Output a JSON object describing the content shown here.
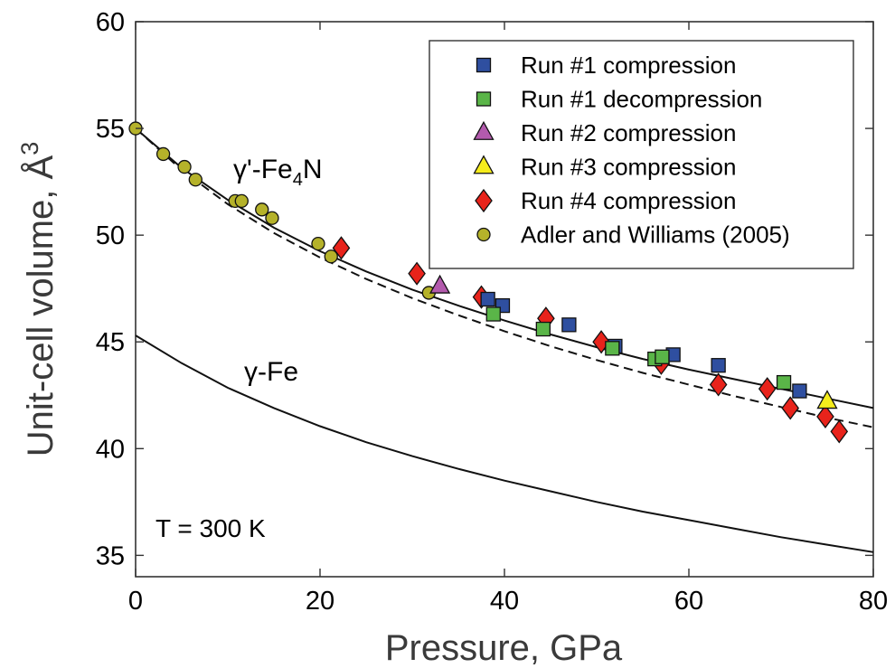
{
  "chart_data": {
    "type": "scatter",
    "xlabel": "Pressure, GPa",
    "ylabel": "Unit-cell volume, Å",
    "ylabel_superscript": "3",
    "xlim": [
      0,
      80
    ],
    "ylim": [
      34,
      60
    ],
    "xticks": [
      0,
      20,
      40,
      60,
      80
    ],
    "yticks": [
      35,
      40,
      45,
      50,
      55,
      60
    ],
    "grid": false,
    "legend_position": "top-right",
    "annotations": {
      "fe4n_label": {
        "text": "γ'-Fe",
        "sub": "4",
        "suffix": "N"
      },
      "fe_label": {
        "text": "γ-Fe"
      },
      "temperature": {
        "text": "T = 300 K"
      }
    },
    "series": [
      {
        "name": "Run #1 compression",
        "marker": "square",
        "color": "#2f4fa0",
        "points": [
          [
            38.2,
            47.0
          ],
          [
            39.8,
            46.7
          ],
          [
            47.0,
            45.8
          ],
          [
            52.0,
            44.8
          ],
          [
            58.3,
            44.4
          ],
          [
            63.2,
            43.9
          ],
          [
            72.0,
            42.7
          ]
        ]
      },
      {
        "name": "Run #1 decompression",
        "marker": "square",
        "color": "#5ab548",
        "points": [
          [
            38.8,
            46.3
          ],
          [
            44.2,
            45.6
          ],
          [
            51.7,
            44.7
          ],
          [
            56.3,
            44.2
          ],
          [
            57.1,
            44.3
          ],
          [
            70.3,
            43.1
          ]
        ]
      },
      {
        "name": "Run #2 compression",
        "marker": "triangle",
        "color": "#b35aad",
        "points": [
          [
            33.0,
            47.6
          ]
        ]
      },
      {
        "name": "Run #3 compression",
        "marker": "triangle",
        "color": "#f5ec1c",
        "points": [
          [
            75.0,
            42.2
          ]
        ]
      },
      {
        "name": "Run #4 compression",
        "marker": "diamond",
        "color": "#e8231b",
        "points": [
          [
            22.3,
            49.4
          ],
          [
            30.5,
            48.2
          ],
          [
            37.5,
            47.1
          ],
          [
            44.5,
            46.1
          ],
          [
            50.5,
            45.0
          ],
          [
            57.0,
            44.0
          ],
          [
            63.2,
            43.0
          ],
          [
            68.5,
            42.8
          ],
          [
            71.0,
            41.9
          ],
          [
            74.8,
            41.5
          ],
          [
            76.3,
            40.8
          ]
        ]
      },
      {
        "name": "Adler and Williams (2005)",
        "marker": "circle",
        "color": "#b5b22a",
        "points": [
          [
            0,
            55.0
          ],
          [
            3.0,
            53.8
          ],
          [
            5.3,
            53.2
          ],
          [
            6.5,
            52.6
          ],
          [
            10.8,
            51.6
          ],
          [
            11.5,
            51.6
          ],
          [
            13.7,
            51.2
          ],
          [
            14.8,
            50.8
          ],
          [
            19.8,
            49.6
          ],
          [
            21.2,
            49.0
          ],
          [
            31.8,
            47.3
          ]
        ]
      }
    ],
    "curves": [
      {
        "id": "fe4n-fit-solid",
        "style": "solid",
        "points": [
          [
            0,
            55.0
          ],
          [
            5,
            53.15
          ],
          [
            10,
            51.65
          ],
          [
            15,
            50.35
          ],
          [
            20,
            49.25
          ],
          [
            25,
            48.3
          ],
          [
            30,
            47.45
          ],
          [
            35,
            46.7
          ],
          [
            40,
            46.0
          ],
          [
            45,
            45.35
          ],
          [
            50,
            44.75
          ],
          [
            55,
            44.2
          ],
          [
            60,
            43.7
          ],
          [
            65,
            43.25
          ],
          [
            70,
            42.8
          ],
          [
            75,
            42.35
          ],
          [
            80,
            41.9
          ]
        ]
      },
      {
        "id": "fe4n-fit-dashed",
        "style": "dashed",
        "points": [
          [
            0,
            55.0
          ],
          [
            5,
            53.05
          ],
          [
            10,
            51.45
          ],
          [
            15,
            50.1
          ],
          [
            20,
            48.95
          ],
          [
            25,
            47.95
          ],
          [
            30,
            47.05
          ],
          [
            35,
            46.25
          ],
          [
            40,
            45.5
          ],
          [
            45,
            44.8
          ],
          [
            50,
            44.15
          ],
          [
            55,
            43.55
          ],
          [
            60,
            43.0
          ],
          [
            65,
            42.45
          ],
          [
            70,
            41.95
          ],
          [
            75,
            41.45
          ],
          [
            80,
            41.0
          ]
        ]
      },
      {
        "id": "gamma-fe-eos",
        "style": "solid",
        "points": [
          [
            0,
            45.3
          ],
          [
            5,
            44.0
          ],
          [
            10,
            42.85
          ],
          [
            15,
            41.9
          ],
          [
            20,
            41.05
          ],
          [
            25,
            40.3
          ],
          [
            30,
            39.65
          ],
          [
            35,
            39.05
          ],
          [
            40,
            38.5
          ],
          [
            45,
            38.0
          ],
          [
            50,
            37.5
          ],
          [
            55,
            37.05
          ],
          [
            60,
            36.65
          ],
          [
            65,
            36.25
          ],
          [
            70,
            35.85
          ],
          [
            75,
            35.5
          ],
          [
            80,
            35.15
          ]
        ]
      }
    ]
  }
}
